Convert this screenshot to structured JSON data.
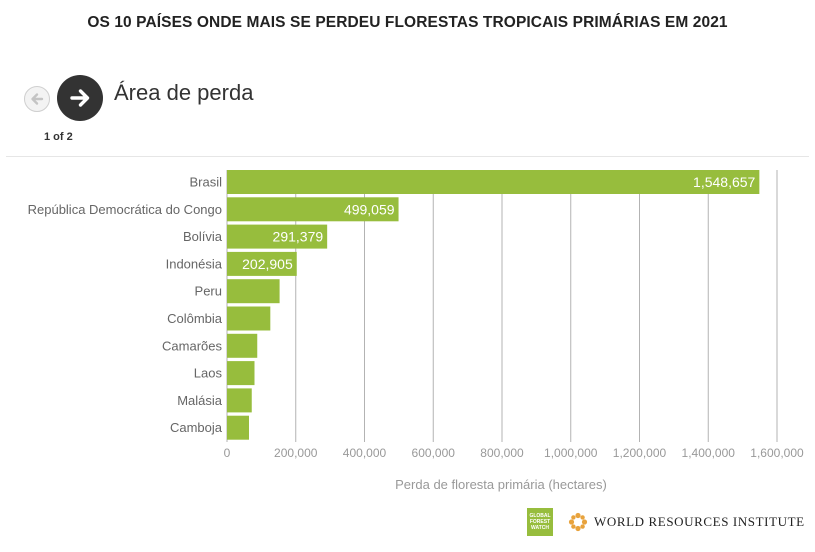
{
  "header": {
    "title": "OS 10 PAÍSES ONDE MAIS SE PERDEU FLORESTAS TROPICAIS PRIMÁRIAS EM 2021"
  },
  "nav": {
    "prev_icon": "arrow-left-icon",
    "next_icon": "arrow-right-icon",
    "section_title": "Área de perda",
    "pager": "1 of 2"
  },
  "colors": {
    "bar": "#97bd3d",
    "grid": "#b3b3b3",
    "axis_text": "#999999",
    "category_text": "#666666",
    "value_label": "#ffffff"
  },
  "chart_data": {
    "type": "bar",
    "orientation": "horizontal",
    "categories": [
      "Brasil",
      "República Democrática do Congo",
      "Bolívia",
      "Indonésia",
      "Peru",
      "Colômbia",
      "Camarões",
      "Laos",
      "Malásia",
      "Camboja"
    ],
    "values": [
      1548657,
      499059,
      291379,
      202905,
      153000,
      126000,
      88000,
      80000,
      72000,
      64000
    ],
    "value_labels": [
      "1,548,657",
      "499,059",
      "291,379",
      "202,905",
      "",
      "",
      "",
      "",
      "",
      ""
    ],
    "xlabel": "Perda de floresta primária (hectares)",
    "ylabel": "",
    "xlim": [
      0,
      1600000
    ],
    "ticks": [
      0,
      200000,
      400000,
      600000,
      800000,
      1000000,
      1200000,
      1400000,
      1600000
    ],
    "tick_labels": [
      "0",
      "200,000",
      "400,000",
      "600,000",
      "800,000",
      "1,000,000",
      "1,200,000",
      "1,400,000",
      "1,600,000"
    ],
    "grid": true,
    "legend": "none"
  },
  "footer": {
    "gfw_logo_text": "GLOBAL FOREST WATCH",
    "wri_logo_icon": "wri-flower-icon",
    "wri_label": "WORLD RESOURCES INSTITUTE"
  }
}
